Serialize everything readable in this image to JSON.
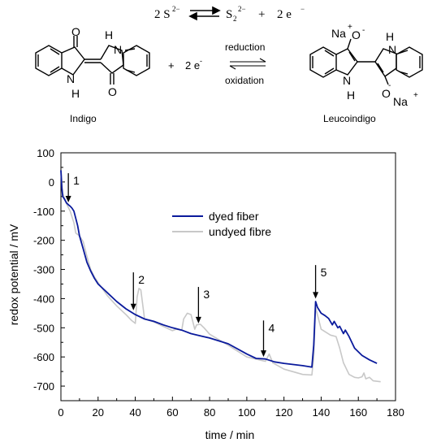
{
  "scheme": {
    "top_equation": {
      "left": "2 S",
      "left_sup": "2−",
      "right": "S",
      "right_sub": "2",
      "right_sup": "2−",
      "plus": "+",
      "electrons": "2 e",
      "electrons_sup": "−"
    },
    "reaction": {
      "plus": "+",
      "electrons": "2 e",
      "electrons_sup": "-",
      "arrow_top_label": "reduction",
      "arrow_bottom_label": "oxidation"
    },
    "indigo": {
      "name": "Indigo",
      "atoms": {
        "o_top": "O",
        "nh_top": "H",
        "n_top": "N",
        "n_bottom": "N",
        "h_bottom": "H",
        "o_bottom": "O"
      }
    },
    "leucoindigo": {
      "name": "Leucoindigo",
      "atoms": {
        "na_top": "Na",
        "plus_top": "+",
        "o_top": "O",
        "minus_top": "-",
        "h_top": "H",
        "n_top": "N",
        "n_bottom": "N",
        "h_bottom": "H",
        "o_bottom": "O",
        "minus_bottom": "-",
        "na_bottom": "Na",
        "plus_bottom": "+"
      }
    }
  },
  "chart_data": {
    "type": "line",
    "title": "",
    "xlabel": "time / min",
    "ylabel": "redox potential / mV",
    "xlim": [
      0,
      180
    ],
    "ylim": [
      -750,
      100
    ],
    "xticks": [
      0,
      20,
      40,
      60,
      80,
      100,
      120,
      140,
      160,
      180
    ],
    "yticks": [
      100,
      0,
      -100,
      -200,
      -300,
      -400,
      -500,
      -600,
      -700
    ],
    "grid": false,
    "legend_position": "center-right",
    "series": [
      {
        "name": "dyed fiber",
        "color": "#0a1a9c",
        "points": [
          [
            0,
            40
          ],
          [
            0.5,
            -20
          ],
          [
            1,
            -50
          ],
          [
            2,
            -60
          ],
          [
            3,
            -72
          ],
          [
            4,
            -78
          ],
          [
            5,
            -83
          ],
          [
            6,
            -90
          ],
          [
            7,
            -100
          ],
          [
            8,
            -125
          ],
          [
            9,
            -150
          ],
          [
            10,
            -185
          ],
          [
            12,
            -230
          ],
          [
            14,
            -275
          ],
          [
            16,
            -305
          ],
          [
            18,
            -330
          ],
          [
            20,
            -350
          ],
          [
            25,
            -380
          ],
          [
            30,
            -410
          ],
          [
            35,
            -435
          ],
          [
            40,
            -455
          ],
          [
            45,
            -470
          ],
          [
            50,
            -478
          ],
          [
            55,
            -490
          ],
          [
            60,
            -500
          ],
          [
            65,
            -508
          ],
          [
            70,
            -520
          ],
          [
            75,
            -528
          ],
          [
            80,
            -535
          ],
          [
            90,
            -555
          ],
          [
            100,
            -590
          ],
          [
            105,
            -605
          ],
          [
            110,
            -607
          ],
          [
            115,
            -617
          ],
          [
            120,
            -622
          ],
          [
            125,
            -626
          ],
          [
            130,
            -630
          ],
          [
            135,
            -635
          ],
          [
            136,
            -560
          ],
          [
            137,
            -410
          ],
          [
            138,
            -430
          ],
          [
            140,
            -450
          ],
          [
            142,
            -458
          ],
          [
            144,
            -468
          ],
          [
            146,
            -490
          ],
          [
            147,
            -478
          ],
          [
            149,
            -500
          ],
          [
            150,
            -495
          ],
          [
            152,
            -520
          ],
          [
            153,
            -508
          ],
          [
            155,
            -530
          ],
          [
            158,
            -570
          ],
          [
            162,
            -595
          ],
          [
            166,
            -610
          ],
          [
            170,
            -622
          ]
        ]
      },
      {
        "name": "undyed fibre",
        "color": "#c8c8c8",
        "points": [
          [
            0,
            40
          ],
          [
            1,
            -40
          ],
          [
            3,
            -75
          ],
          [
            5,
            -100
          ],
          [
            7,
            -140
          ],
          [
            8,
            -175
          ],
          [
            10,
            -185
          ],
          [
            12,
            -205
          ],
          [
            14,
            -255
          ],
          [
            16,
            -300
          ],
          [
            18,
            -325
          ],
          [
            20,
            -345
          ],
          [
            25,
            -390
          ],
          [
            30,
            -425
          ],
          [
            35,
            -455
          ],
          [
            38,
            -475
          ],
          [
            40,
            -485
          ],
          [
            41,
            -395
          ],
          [
            42,
            -365
          ],
          [
            43,
            -370
          ],
          [
            44,
            -420
          ],
          [
            45,
            -470
          ],
          [
            50,
            -480
          ],
          [
            55,
            -495
          ],
          [
            60,
            -510
          ],
          [
            62,
            -505
          ],
          [
            65,
            -508
          ],
          [
            66,
            -470
          ],
          [
            68,
            -450
          ],
          [
            70,
            -455
          ],
          [
            72,
            -505
          ],
          [
            73,
            -490
          ],
          [
            75,
            -488
          ],
          [
            77,
            -500
          ],
          [
            80,
            -522
          ],
          [
            90,
            -560
          ],
          [
            100,
            -600
          ],
          [
            110,
            -615
          ],
          [
            112,
            -590
          ],
          [
            114,
            -620
          ],
          [
            120,
            -642
          ],
          [
            130,
            -660
          ],
          [
            135,
            -662
          ],
          [
            136,
            -600
          ],
          [
            137,
            -430
          ],
          [
            140,
            -505
          ],
          [
            145,
            -525
          ],
          [
            148,
            -530
          ],
          [
            150,
            -570
          ],
          [
            152,
            -620
          ],
          [
            155,
            -660
          ],
          [
            158,
            -670
          ],
          [
            160,
            -672
          ],
          [
            162,
            -668
          ],
          [
            163,
            -655
          ],
          [
            164,
            -675
          ],
          [
            166,
            -670
          ],
          [
            168,
            -682
          ],
          [
            172,
            -685
          ]
        ]
      }
    ],
    "annotations": [
      {
        "label": "1",
        "x": 4,
        "y_top": 30,
        "y_tip": -70
      },
      {
        "label": "2",
        "x": 39,
        "y_top": -310,
        "y_tip": -440
      },
      {
        "label": "3",
        "x": 74,
        "y_top": -360,
        "y_tip": -485
      },
      {
        "label": "4",
        "x": 109,
        "y_top": -475,
        "y_tip": -600
      },
      {
        "label": "5",
        "x": 137,
        "y_top": -285,
        "y_tip": -400
      }
    ]
  }
}
